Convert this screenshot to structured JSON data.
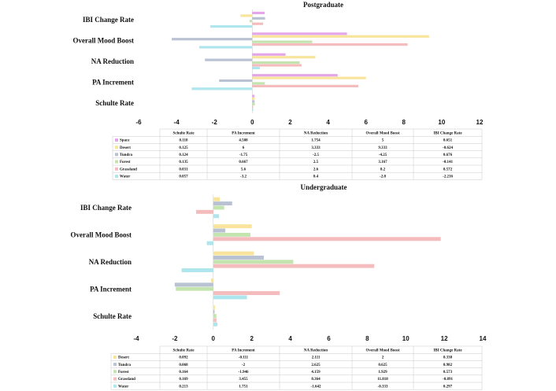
{
  "colors": {
    "Space": "#e4a5e9",
    "Desert": "#f8e49a",
    "Tundra": "#b8c2d2",
    "Forest": "#c3e4ae",
    "Grassland": "#f4bcbc",
    "Water": "#aee6ee"
  },
  "chart_data": [
    {
      "type": "bar",
      "orientation": "horizontal",
      "title": "Postgraduate",
      "categories": [
        "IBI Change Rate",
        "Overall Mood Boost",
        "NA Reduction",
        "PA Increment",
        "Schulte Rate"
      ],
      "table_columns": [
        "Schulte Rate",
        "PA Increment",
        "NA Reduction",
        "Overall Mood Boost",
        "IBI Change Rate"
      ],
      "xlim": [
        -6,
        12
      ],
      "xticks": [
        -6,
        -4,
        -2,
        0,
        2,
        4,
        6,
        8,
        10,
        12
      ],
      "series": [
        {
          "name": "Space",
          "values": [
            0.118,
            4.508,
            1.754,
            5,
            0.651
          ]
        },
        {
          "name": "Desert",
          "values": [
            0.125,
            6,
            3.333,
            9.333,
            -0.624
          ]
        },
        {
          "name": "Tundra",
          "values": [
            0.124,
            -1.75,
            -2.5,
            -4.25,
            0.676
          ]
        },
        {
          "name": "Forest",
          "values": [
            0.135,
            0.667,
            2.5,
            3.167,
            -0.141
          ]
        },
        {
          "name": "Grassland",
          "values": [
            0.031,
            5.6,
            2.6,
            8.2,
            0.572
          ]
        },
        {
          "name": "Water",
          "values": [
            0.057,
            -3.2,
            0.4,
            -2.8,
            -2.216
          ]
        }
      ]
    },
    {
      "type": "bar",
      "orientation": "horizontal",
      "title": "Undergraduate",
      "categories": [
        "IBI Change Rate",
        "Overall Mood Boost",
        "NA Reduction",
        "PA Increment",
        "Schulte Rate"
      ],
      "table_columns": [
        "Schulte Rate",
        "PA Increment",
        "NA Reduction",
        "Overall Mood Boost",
        "IBI Change Rate"
      ],
      "xlim": [
        -4,
        14
      ],
      "xticks": [
        -4,
        -2,
        0,
        2,
        4,
        6,
        8,
        10,
        12,
        14
      ],
      "series": [
        {
          "name": "Desert",
          "values": [
            0.092,
            -0.111,
            2.111,
            2,
            0.338
          ]
        },
        {
          "name": "Tundra",
          "values": [
            0.068,
            -2,
            2.625,
            0.625,
            0.982
          ]
        },
        {
          "name": "Forest",
          "values": [
            0.164,
            -1.946,
            4.159,
            1.929,
            0.573
          ]
        },
        {
          "name": "Grassland",
          "values": [
            0.169,
            3.455,
            8.364,
            11.818,
            -0.891
          ]
        },
        {
          "name": "Water",
          "values": [
            0.213,
            1.751,
            -1.642,
            -0.333,
            0.297
          ]
        }
      ]
    }
  ]
}
